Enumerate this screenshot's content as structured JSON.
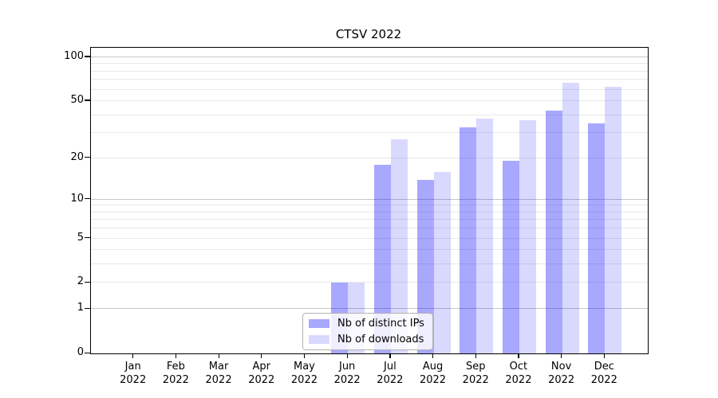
{
  "title": "CTSV 2022",
  "chart_data": {
    "type": "bar",
    "title": "CTSV 2022",
    "categories": [
      "Jan",
      "Feb",
      "Mar",
      "Apr",
      "May",
      "Jun",
      "Jul",
      "Aug",
      "Sep",
      "Oct",
      "Nov",
      "Dec"
    ],
    "category_year": "2022",
    "series": [
      {
        "name": "Nb of distinct IPs",
        "color": "rgba(0,0,255,0.34)",
        "values": [
          0,
          0,
          0,
          0,
          0,
          2,
          18,
          14,
          33,
          19,
          43,
          35
        ]
      },
      {
        "name": "Nb of downloads",
        "color": "rgba(0,0,255,0.15)",
        "values": [
          0,
          0,
          0,
          0,
          0,
          2,
          27,
          16,
          38,
          37,
          67,
          63
        ]
      }
    ],
    "yscale": "log1p",
    "ylim": [
      0,
      116
    ],
    "yticks": [
      0,
      1,
      2,
      5,
      10,
      20,
      50,
      100
    ],
    "ytick_labels": [
      "0",
      "1",
      "2",
      "5",
      "10",
      "20",
      "50",
      "100"
    ],
    "yticks_major_grid": [
      1,
      10,
      100
    ],
    "yticks_minor": [
      3,
      4,
      6,
      7,
      8,
      9,
      30,
      40,
      60,
      70,
      80,
      90
    ],
    "grid": true,
    "legend_position": "lower-center",
    "xlabel": "",
    "ylabel": ""
  },
  "colors": {
    "grid_major": "#c6c6c6",
    "grid_minor": "#e9e9e9",
    "spine": "#000000",
    "legend_border": "#b3b3b3",
    "text": "#000000"
  }
}
